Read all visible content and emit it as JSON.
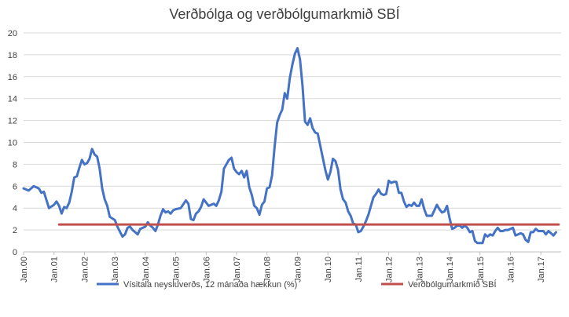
{
  "chart_data": {
    "type": "line",
    "title": "Verðbólga og verðbólgumarkmið SBÍ",
    "xlabel": "",
    "ylabel": "",
    "ylim": [
      0,
      20
    ],
    "yticks": [
      "0",
      "2",
      "4",
      "6",
      "8",
      "10",
      "12",
      "14",
      "16",
      "18",
      "20"
    ],
    "x_ticks": [
      "Jan.00",
      "Jan.01",
      "Jan.02",
      "Jan.03",
      "Jan.04",
      "Jan.05",
      "Jan.06",
      "Jan.07",
      "Jan.08",
      "Jan.09",
      "Jan.10",
      "Jan.11",
      "Jan.12",
      "Jan.13",
      "Jan.14",
      "Jan.15",
      "Jan.16",
      "Jan.17"
    ],
    "grid": "horizontal",
    "legend_position": "bottom",
    "series": [
      {
        "name": "Vísitala neysluverðs, 12 mánaða hækkun (%)",
        "color": "#4472C4",
        "points": [
          [
            "2000-01",
            5.8
          ],
          [
            "2000-03",
            5.6
          ],
          [
            "2000-05",
            6.0
          ],
          [
            "2000-07",
            5.8
          ],
          [
            "2000-08",
            5.4
          ],
          [
            "2000-09",
            5.5
          ],
          [
            "2000-11",
            4.0
          ],
          [
            "2001-01",
            4.3
          ],
          [
            "2001-02",
            4.6
          ],
          [
            "2001-03",
            4.2
          ],
          [
            "2001-04",
            3.5
          ],
          [
            "2001-05",
            4.1
          ],
          [
            "2001-06",
            4.0
          ],
          [
            "2001-07",
            4.5
          ],
          [
            "2001-08",
            5.5
          ],
          [
            "2001-09",
            6.8
          ],
          [
            "2001-10",
            6.9
          ],
          [
            "2001-11",
            7.7
          ],
          [
            "2001-12",
            8.4
          ],
          [
            "2002-01",
            8.0
          ],
          [
            "2002-02",
            8.1
          ],
          [
            "2002-03",
            8.5
          ],
          [
            "2002-04",
            9.4
          ],
          [
            "2002-05",
            8.9
          ],
          [
            "2002-06",
            8.7
          ],
          [
            "2002-07",
            7.6
          ],
          [
            "2002-08",
            5.8
          ],
          [
            "2002-09",
            4.8
          ],
          [
            "2002-10",
            4.2
          ],
          [
            "2002-11",
            3.2
          ],
          [
            "2003-01",
            2.9
          ],
          [
            "2003-02",
            2.3
          ],
          [
            "2003-04",
            1.4
          ],
          [
            "2003-05",
            1.6
          ],
          [
            "2003-06",
            2.2
          ],
          [
            "2003-07",
            2.3
          ],
          [
            "2003-08",
            2.0
          ],
          [
            "2003-09",
            1.8
          ],
          [
            "2003-10",
            1.6
          ],
          [
            "2003-11",
            2.1
          ],
          [
            "2004-01",
            2.3
          ],
          [
            "2004-02",
            2.7
          ],
          [
            "2004-03",
            2.4
          ],
          [
            "2004-04",
            2.2
          ],
          [
            "2004-05",
            1.9
          ],
          [
            "2004-06",
            2.5
          ],
          [
            "2004-07",
            3.3
          ],
          [
            "2004-08",
            3.9
          ],
          [
            "2004-09",
            3.6
          ],
          [
            "2004-10",
            3.7
          ],
          [
            "2004-11",
            3.5
          ],
          [
            "2004-12",
            3.8
          ],
          [
            "2005-01",
            3.9
          ],
          [
            "2005-03",
            4.0
          ],
          [
            "2005-05",
            4.7
          ],
          [
            "2005-06",
            4.4
          ],
          [
            "2005-07",
            3.0
          ],
          [
            "2005-08",
            2.9
          ],
          [
            "2005-09",
            3.5
          ],
          [
            "2005-10",
            3.7
          ],
          [
            "2005-11",
            4.1
          ],
          [
            "2005-12",
            4.8
          ],
          [
            "2006-01",
            4.5
          ],
          [
            "2006-02",
            4.2
          ],
          [
            "2006-04",
            4.4
          ],
          [
            "2006-05",
            4.2
          ],
          [
            "2006-06",
            4.7
          ],
          [
            "2006-07",
            5.5
          ],
          [
            "2006-08",
            7.6
          ],
          [
            "2006-09",
            8.0
          ],
          [
            "2006-10",
            8.4
          ],
          [
            "2006-11",
            8.6
          ],
          [
            "2006-12",
            7.6
          ],
          [
            "2007-01",
            7.3
          ],
          [
            "2007-02",
            7.1
          ],
          [
            "2007-03",
            7.4
          ],
          [
            "2007-04",
            6.8
          ],
          [
            "2007-05",
            7.4
          ],
          [
            "2007-06",
            5.9
          ],
          [
            "2007-07",
            5.2
          ],
          [
            "2007-08",
            4.2
          ],
          [
            "2007-09",
            4.0
          ],
          [
            "2007-10",
            3.4
          ],
          [
            "2007-11",
            4.3
          ],
          [
            "2007-12",
            4.6
          ],
          [
            "2008-01",
            5.8
          ],
          [
            "2008-02",
            5.9
          ],
          [
            "2008-03",
            7.0
          ],
          [
            "2008-04",
            9.6
          ],
          [
            "2008-05",
            11.8
          ],
          [
            "2008-06",
            12.5
          ],
          [
            "2008-07",
            13.0
          ],
          [
            "2008-08",
            14.5
          ],
          [
            "2008-09",
            14.0
          ],
          [
            "2008-10",
            15.9
          ],
          [
            "2008-11",
            17.1
          ],
          [
            "2008-12",
            18.1
          ],
          [
            "2009-01",
            18.6
          ],
          [
            "2009-02",
            17.6
          ],
          [
            "2009-03",
            15.2
          ],
          [
            "2009-04",
            11.9
          ],
          [
            "2009-05",
            11.6
          ],
          [
            "2009-06",
            12.2
          ],
          [
            "2009-07",
            11.3
          ],
          [
            "2009-08",
            10.9
          ],
          [
            "2009-09",
            10.8
          ],
          [
            "2009-10",
            9.7
          ],
          [
            "2009-11",
            8.6
          ],
          [
            "2009-12",
            7.5
          ],
          [
            "2010-01",
            6.6
          ],
          [
            "2010-02",
            7.3
          ],
          [
            "2010-03",
            8.5
          ],
          [
            "2010-04",
            8.3
          ],
          [
            "2010-05",
            7.5
          ],
          [
            "2010-06",
            5.7
          ],
          [
            "2010-07",
            4.8
          ],
          [
            "2010-08",
            4.5
          ],
          [
            "2010-09",
            3.7
          ],
          [
            "2010-10",
            3.3
          ],
          [
            "2010-11",
            2.6
          ],
          [
            "2010-12",
            2.5
          ],
          [
            "2011-01",
            1.8
          ],
          [
            "2011-02",
            1.9
          ],
          [
            "2011-03",
            2.3
          ],
          [
            "2011-04",
            2.8
          ],
          [
            "2011-05",
            3.4
          ],
          [
            "2011-06",
            4.2
          ],
          [
            "2011-07",
            5.0
          ],
          [
            "2011-08",
            5.3
          ],
          [
            "2011-09",
            5.7
          ],
          [
            "2011-10",
            5.3
          ],
          [
            "2011-11",
            5.2
          ],
          [
            "2011-12",
            5.3
          ],
          [
            "2012-01",
            6.5
          ],
          [
            "2012-02",
            6.3
          ],
          [
            "2012-03",
            6.4
          ],
          [
            "2012-04",
            6.4
          ],
          [
            "2012-05",
            5.4
          ],
          [
            "2012-06",
            5.4
          ],
          [
            "2012-07",
            4.6
          ],
          [
            "2012-08",
            4.1
          ],
          [
            "2012-09",
            4.3
          ],
          [
            "2012-10",
            4.2
          ],
          [
            "2012-11",
            4.5
          ],
          [
            "2012-12",
            4.2
          ],
          [
            "2013-01",
            4.2
          ],
          [
            "2013-02",
            4.8
          ],
          [
            "2013-03",
            3.9
          ],
          [
            "2013-04",
            3.3
          ],
          [
            "2013-05",
            3.3
          ],
          [
            "2013-06",
            3.3
          ],
          [
            "2013-07",
            3.8
          ],
          [
            "2013-08",
            4.3
          ],
          [
            "2013-09",
            3.9
          ],
          [
            "2013-10",
            3.6
          ],
          [
            "2013-11",
            3.7
          ],
          [
            "2013-12",
            4.2
          ],
          [
            "2014-01",
            3.1
          ],
          [
            "2014-02",
            2.1
          ],
          [
            "2014-03",
            2.2
          ],
          [
            "2014-04",
            2.4
          ],
          [
            "2014-05",
            2.4
          ],
          [
            "2014-06",
            2.2
          ],
          [
            "2014-07",
            2.4
          ],
          [
            "2014-08",
            2.2
          ],
          [
            "2014-09",
            1.8
          ],
          [
            "2014-10",
            1.9
          ],
          [
            "2014-11",
            1.0
          ],
          [
            "2014-12",
            0.8
          ],
          [
            "2015-01",
            0.8
          ],
          [
            "2015-02",
            0.8
          ],
          [
            "2015-03",
            1.6
          ],
          [
            "2015-04",
            1.4
          ],
          [
            "2015-05",
            1.6
          ],
          [
            "2015-06",
            1.5
          ],
          [
            "2015-07",
            1.9
          ],
          [
            "2015-08",
            2.2
          ],
          [
            "2015-09",
            1.9
          ],
          [
            "2015-10",
            1.9
          ],
          [
            "2015-11",
            2.0
          ],
          [
            "2015-12",
            2.0
          ],
          [
            "2016-01",
            2.1
          ],
          [
            "2016-02",
            2.2
          ],
          [
            "2016-03",
            1.5
          ],
          [
            "2016-04",
            1.6
          ],
          [
            "2016-05",
            1.7
          ],
          [
            "2016-06",
            1.6
          ],
          [
            "2016-07",
            1.1
          ],
          [
            "2016-08",
            0.9
          ],
          [
            "2016-09",
            1.8
          ],
          [
            "2016-10",
            1.8
          ],
          [
            "2016-11",
            2.1
          ],
          [
            "2016-12",
            1.9
          ],
          [
            "2017-01",
            1.9
          ],
          [
            "2017-02",
            1.9
          ],
          [
            "2017-03",
            1.6
          ],
          [
            "2017-04",
            1.9
          ],
          [
            "2017-05",
            1.7
          ],
          [
            "2017-06",
            1.5
          ],
          [
            "2017-07",
            1.8
          ]
        ]
      },
      {
        "name": "Verðbólgumarkmið SBÍ",
        "color": "#C0504D",
        "points": [
          [
            "2001-03",
            2.5
          ],
          [
            "2017-08",
            2.5
          ]
        ]
      }
    ]
  }
}
